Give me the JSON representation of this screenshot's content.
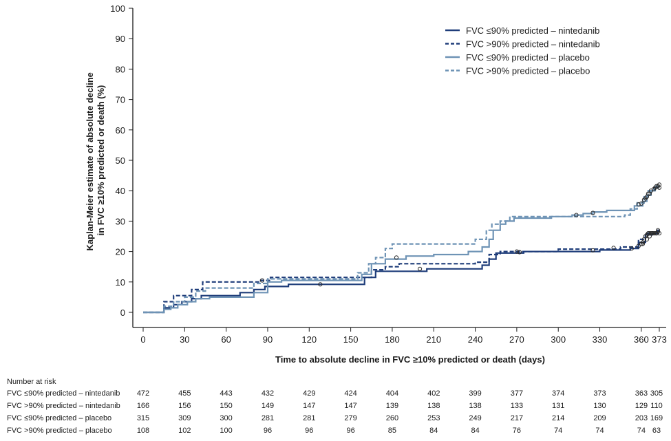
{
  "chart_data": {
    "type": "line",
    "xlabel": "Time to absolute decline in FVC ≥10% predicted or death (days)",
    "ylabel_lines": [
      "Kaplan-Meier estimate of absolute decline",
      "in FVC ≥10% predicted or death (%)"
    ],
    "x_ticks": [
      "0",
      "30",
      "60",
      "90",
      "120",
      "150",
      "180",
      "210",
      "240",
      "270",
      "300",
      "330",
      "360",
      "373"
    ],
    "x_tick_values": [
      0,
      30,
      60,
      90,
      120,
      150,
      180,
      210,
      240,
      270,
      300,
      330,
      360,
      373
    ],
    "y_ticks": [
      "0",
      "10",
      "20",
      "30",
      "40",
      "50",
      "60",
      "70",
      "80",
      "90",
      "100"
    ],
    "xlim": [
      0,
      373
    ],
    "ylim": [
      0,
      100
    ],
    "grid": false,
    "legend_position": "top-right",
    "series": [
      {
        "name": "FVC ≤90% predicted – nintedanib",
        "color": "#1f3d7a",
        "dash": "solid",
        "points": [
          [
            0,
            0
          ],
          [
            15,
            0
          ],
          [
            15,
            1.5
          ],
          [
            22,
            1.5
          ],
          [
            22,
            2.5
          ],
          [
            28,
            2.5
          ],
          [
            28,
            3.5
          ],
          [
            35,
            3.5
          ],
          [
            35,
            4.5
          ],
          [
            42,
            4.5
          ],
          [
            42,
            5.5
          ],
          [
            70,
            5.5
          ],
          [
            70,
            6.5
          ],
          [
            80,
            6.5
          ],
          [
            80,
            7.5
          ],
          [
            88,
            7.5
          ],
          [
            88,
            8.5
          ],
          [
            105,
            8.5
          ],
          [
            105,
            9.2
          ],
          [
            160,
            9.2
          ],
          [
            160,
            11.5
          ],
          [
            168,
            11.5
          ],
          [
            168,
            13.5
          ],
          [
            205,
            13.5
          ],
          [
            205,
            14.3
          ],
          [
            245,
            14.3
          ],
          [
            245,
            15.5
          ],
          [
            250,
            15.5
          ],
          [
            250,
            17.5
          ],
          [
            255,
            17.5
          ],
          [
            255,
            19.5
          ],
          [
            275,
            19.5
          ],
          [
            275,
            20
          ],
          [
            330,
            20
          ],
          [
            330,
            20.5
          ],
          [
            352,
            20.5
          ],
          [
            352,
            21
          ],
          [
            358,
            21
          ],
          [
            358,
            23
          ],
          [
            363,
            23
          ],
          [
            363,
            25.5
          ],
          [
            368,
            25.5
          ],
          [
            368,
            26
          ],
          [
            372,
            26
          ],
          [
            372,
            27
          ],
          [
            373,
            27
          ]
        ],
        "censor_points": [
          [
            128,
            9.2
          ],
          [
            200,
            14.3
          ],
          [
            272,
            19.8
          ],
          [
            325,
            20.4
          ],
          [
            353,
            21
          ],
          [
            358,
            21.8
          ],
          [
            360,
            22.5
          ],
          [
            361,
            23
          ],
          [
            362,
            24
          ],
          [
            363,
            25
          ],
          [
            364,
            25.5
          ],
          [
            365,
            26
          ],
          [
            366,
            26
          ],
          [
            367,
            26
          ],
          [
            368,
            26
          ],
          [
            369,
            26
          ],
          [
            370,
            26
          ],
          [
            371,
            26
          ],
          [
            372,
            26.5
          ],
          [
            372,
            27
          ]
        ]
      },
      {
        "name": "FVC >90% predicted – nintedanib",
        "color": "#1f3d7a",
        "dash": "dashed",
        "points": [
          [
            0,
            0
          ],
          [
            15,
            0
          ],
          [
            15,
            3.5
          ],
          [
            22,
            3.5
          ],
          [
            22,
            5.5
          ],
          [
            35,
            5.5
          ],
          [
            35,
            7.5
          ],
          [
            43,
            7.5
          ],
          [
            43,
            10
          ],
          [
            85,
            10
          ],
          [
            85,
            10.5
          ],
          [
            92,
            10.5
          ],
          [
            92,
            11.5
          ],
          [
            165,
            11.5
          ],
          [
            165,
            14
          ],
          [
            175,
            14
          ],
          [
            175,
            15
          ],
          [
            185,
            15
          ],
          [
            185,
            16
          ],
          [
            240,
            16
          ],
          [
            240,
            16.5
          ],
          [
            250,
            16.5
          ],
          [
            250,
            19
          ],
          [
            258,
            19
          ],
          [
            258,
            20
          ],
          [
            300,
            20
          ],
          [
            300,
            20.8
          ],
          [
            345,
            20.8
          ],
          [
            345,
            21.5
          ],
          [
            358,
            21.5
          ],
          [
            358,
            24
          ],
          [
            363,
            24
          ],
          [
            363,
            26
          ],
          [
            373,
            26
          ]
        ],
        "censor_points": [
          [
            86,
            10.5
          ],
          [
            270,
            20
          ],
          [
            340,
            21.2
          ],
          [
            361,
            22.5
          ],
          [
            364,
            24
          ],
          [
            366,
            25
          ],
          [
            368,
            26
          ],
          [
            371,
            26
          ],
          [
            373,
            26
          ]
        ]
      },
      {
        "name": "FVC ≤90% predicted – placebo",
        "color": "#6e93b5",
        "dash": "solid",
        "points": [
          [
            0,
            0
          ],
          [
            15,
            0
          ],
          [
            15,
            1
          ],
          [
            20,
            1
          ],
          [
            20,
            1.5
          ],
          [
            25,
            1.5
          ],
          [
            25,
            2.5
          ],
          [
            32,
            2.5
          ],
          [
            32,
            3.5
          ],
          [
            38,
            3.5
          ],
          [
            38,
            4.5
          ],
          [
            48,
            4.5
          ],
          [
            48,
            5
          ],
          [
            80,
            5
          ],
          [
            80,
            6.5
          ],
          [
            90,
            6.5
          ],
          [
            90,
            10
          ],
          [
            100,
            10
          ],
          [
            100,
            10.5
          ],
          [
            158,
            10.5
          ],
          [
            158,
            12.5
          ],
          [
            165,
            12.5
          ],
          [
            165,
            16
          ],
          [
            175,
            16
          ],
          [
            175,
            17.5
          ],
          [
            190,
            17.5
          ],
          [
            190,
            18.5
          ],
          [
            210,
            18.5
          ],
          [
            210,
            19
          ],
          [
            235,
            19
          ],
          [
            235,
            20
          ],
          [
            245,
            20
          ],
          [
            245,
            21.5
          ],
          [
            250,
            21.5
          ],
          [
            250,
            24
          ],
          [
            253,
            24
          ],
          [
            253,
            27
          ],
          [
            258,
            27
          ],
          [
            258,
            29
          ],
          [
            262,
            29
          ],
          [
            262,
            30
          ],
          [
            268,
            30
          ],
          [
            268,
            31
          ],
          [
            295,
            31
          ],
          [
            295,
            31.5
          ],
          [
            310,
            31.5
          ],
          [
            310,
            32
          ],
          [
            318,
            32
          ],
          [
            318,
            32.5
          ],
          [
            325,
            32.5
          ],
          [
            325,
            33
          ],
          [
            335,
            33
          ],
          [
            335,
            33.5
          ],
          [
            355,
            33.5
          ],
          [
            355,
            35
          ],
          [
            361,
            35
          ],
          [
            361,
            36.5
          ],
          [
            364,
            36.5
          ],
          [
            364,
            38.5
          ],
          [
            367,
            38.5
          ],
          [
            367,
            40
          ],
          [
            370,
            40
          ],
          [
            370,
            41
          ],
          [
            373,
            41
          ]
        ],
        "censor_points": [
          [
            183,
            18
          ],
          [
            313,
            32
          ],
          [
            325,
            32.7
          ],
          [
            358,
            35.5
          ],
          [
            362,
            37
          ],
          [
            364,
            38
          ],
          [
            365,
            39
          ],
          [
            367,
            40
          ],
          [
            370,
            41
          ],
          [
            372,
            41.5
          ],
          [
            373,
            42
          ]
        ]
      },
      {
        "name": "FVC >90% predicted – placebo",
        "color": "#6e93b5",
        "dash": "dashed",
        "points": [
          [
            0,
            0
          ],
          [
            15,
            0
          ],
          [
            15,
            2
          ],
          [
            22,
            2
          ],
          [
            22,
            3.5
          ],
          [
            30,
            3.5
          ],
          [
            30,
            5
          ],
          [
            38,
            5
          ],
          [
            38,
            7
          ],
          [
            45,
            7
          ],
          [
            45,
            8
          ],
          [
            80,
            8
          ],
          [
            80,
            9.5
          ],
          [
            90,
            9.5
          ],
          [
            90,
            11
          ],
          [
            155,
            11
          ],
          [
            155,
            13
          ],
          [
            163,
            13
          ],
          [
            163,
            16
          ],
          [
            168,
            16
          ],
          [
            168,
            18
          ],
          [
            175,
            18
          ],
          [
            175,
            21
          ],
          [
            180,
            21
          ],
          [
            180,
            22.5
          ],
          [
            240,
            22.5
          ],
          [
            240,
            24
          ],
          [
            248,
            24
          ],
          [
            248,
            27
          ],
          [
            252,
            27
          ],
          [
            252,
            29
          ],
          [
            258,
            29
          ],
          [
            258,
            30
          ],
          [
            265,
            30
          ],
          [
            265,
            31.5
          ],
          [
            348,
            31.5
          ],
          [
            348,
            32
          ],
          [
            352,
            32
          ],
          [
            352,
            34
          ],
          [
            357,
            34
          ],
          [
            357,
            36
          ],
          [
            362,
            36
          ],
          [
            362,
            38
          ],
          [
            365,
            38
          ],
          [
            365,
            40
          ],
          [
            369,
            40
          ],
          [
            369,
            41.5
          ],
          [
            373,
            41.5
          ]
        ],
        "censor_points": [
          [
            360,
            35.8
          ],
          [
            363,
            37.5
          ],
          [
            366,
            39
          ],
          [
            369,
            40.5
          ],
          [
            371,
            41.5
          ],
          [
            373,
            41
          ]
        ]
      }
    ]
  },
  "risk_table": {
    "header": "Number at risk",
    "rows": [
      {
        "label": "FVC ≤90% predicted – nintedanib",
        "values": [
          "472",
          "455",
          "443",
          "432",
          "429",
          "424",
          "404",
          "402",
          "399",
          "377",
          "374",
          "373",
          "363",
          "305"
        ]
      },
      {
        "label": "FVC >90% predicted – nintedanib",
        "values": [
          "166",
          "156",
          "150",
          "149",
          "147",
          "147",
          "139",
          "138",
          "138",
          "133",
          "131",
          "130",
          "129",
          "110"
        ]
      },
      {
        "label": "FVC ≤90% predicted – placebo",
        "values": [
          "315",
          "309",
          "300",
          "281",
          "281",
          "279",
          "260",
          "253",
          "249",
          "217",
          "214",
          "209",
          "203",
          "169"
        ]
      },
      {
        "label": "FVC >90% predicted – placebo",
        "values": [
          "108",
          "102",
          "100",
          "96",
          "96",
          "96",
          "85",
          "84",
          "84",
          "76",
          "74",
          "74",
          "74",
          "63"
        ]
      }
    ]
  }
}
